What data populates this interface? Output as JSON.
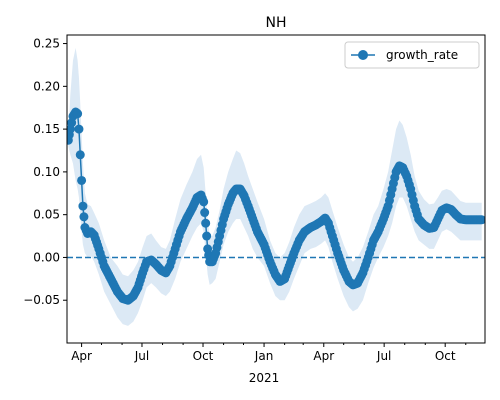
{
  "chart_data": {
    "type": "line",
    "title": "NH",
    "xlabel": "",
    "ylabel": "",
    "x_axis": {
      "type": "date",
      "range": [
        "2020-03-10",
        "2021-11-30"
      ],
      "ticks": [
        {
          "date": "2020-04-01",
          "label": "Apr"
        },
        {
          "date": "2020-07-01",
          "label": "Jul"
        },
        {
          "date": "2020-10-01",
          "label": "Oct"
        },
        {
          "date": "2021-01-01",
          "label": "Jan"
        },
        {
          "date": "2021-04-01",
          "label": "Apr"
        },
        {
          "date": "2021-07-01",
          "label": "Jul"
        },
        {
          "date": "2021-10-01",
          "label": "Oct"
        }
      ],
      "year_label": {
        "date": "2021-01-01",
        "label": "2021"
      }
    },
    "y_axis": {
      "range": [
        -0.1,
        0.26
      ],
      "ticks": [
        -0.05,
        0.0,
        0.05,
        0.1,
        0.15,
        0.2,
        0.25
      ],
      "tick_labels": [
        "−0.05",
        "0.00",
        "0.05",
        "0.10",
        "0.15",
        "0.20",
        "0.25"
      ]
    },
    "grid": false,
    "legend": {
      "position": "top-right",
      "entries": [
        "growth_rate"
      ]
    },
    "reference_line": {
      "y": 0.0,
      "style": "dashed",
      "color": "#1f77b4"
    },
    "series": [
      {
        "name": "growth_rate",
        "color": "#1f77b4",
        "marker": "circle",
        "band_color": "#dce9f5",
        "points": [
          [
            "2020-03-12",
            0.137,
            0.13,
            0.145
          ],
          [
            "2020-03-15",
            0.15,
            0.12,
            0.19
          ],
          [
            "2020-03-19",
            0.165,
            0.11,
            0.23
          ],
          [
            "2020-03-23",
            0.17,
            0.09,
            0.245
          ],
          [
            "2020-03-26",
            0.168,
            0.08,
            0.23
          ],
          [
            "2020-03-28",
            0.15,
            0.07,
            0.21
          ],
          [
            "2020-03-30",
            0.12,
            0.05,
            0.18
          ],
          [
            "2020-04-01",
            0.09,
            0.03,
            0.145
          ],
          [
            "2020-04-03",
            0.06,
            0.015,
            0.11
          ],
          [
            "2020-04-06",
            0.035,
            0.005,
            0.075
          ],
          [
            "2020-04-10",
            0.028,
            0.0,
            0.062
          ],
          [
            "2020-04-15",
            0.03,
            0.002,
            0.06
          ],
          [
            "2020-04-20",
            0.026,
            -0.005,
            0.052
          ],
          [
            "2020-04-27",
            0.01,
            -0.02,
            0.04
          ],
          [
            "2020-05-05",
            -0.01,
            -0.04,
            0.02
          ],
          [
            "2020-05-15",
            -0.025,
            -0.055,
            0.0
          ],
          [
            "2020-05-25",
            -0.04,
            -0.07,
            -0.01
          ],
          [
            "2020-06-02",
            -0.048,
            -0.078,
            -0.02
          ],
          [
            "2020-06-10",
            -0.05,
            -0.08,
            -0.022
          ],
          [
            "2020-06-18",
            -0.045,
            -0.075,
            -0.015
          ],
          [
            "2020-06-25",
            -0.035,
            -0.065,
            -0.005
          ],
          [
            "2020-07-02",
            -0.018,
            -0.05,
            0.012
          ],
          [
            "2020-07-08",
            -0.005,
            -0.035,
            0.025
          ],
          [
            "2020-07-15",
            -0.003,
            -0.03,
            0.028
          ],
          [
            "2020-07-22",
            -0.008,
            -0.035,
            0.02
          ],
          [
            "2020-07-30",
            -0.015,
            -0.042,
            0.012
          ],
          [
            "2020-08-06",
            -0.018,
            -0.045,
            0.01
          ],
          [
            "2020-08-12",
            -0.01,
            -0.04,
            0.02
          ],
          [
            "2020-08-20",
            0.01,
            -0.025,
            0.045
          ],
          [
            "2020-08-28",
            0.03,
            -0.005,
            0.068
          ],
          [
            "2020-09-06",
            0.045,
            0.01,
            0.085
          ],
          [
            "2020-09-15",
            0.058,
            0.025,
            0.1
          ],
          [
            "2020-09-22",
            0.07,
            0.035,
            0.115
          ],
          [
            "2020-09-28",
            0.073,
            0.04,
            0.12
          ],
          [
            "2020-10-02",
            0.065,
            0.03,
            0.105
          ],
          [
            "2020-10-05",
            0.04,
            0.005,
            0.075
          ],
          [
            "2020-10-08",
            0.01,
            -0.02,
            0.045
          ],
          [
            "2020-10-11",
            -0.005,
            -0.032,
            0.025
          ],
          [
            "2020-10-15",
            -0.005,
            -0.03,
            0.025
          ],
          [
            "2020-10-20",
            0.005,
            -0.025,
            0.035
          ],
          [
            "2020-10-26",
            0.025,
            -0.005,
            0.055
          ],
          [
            "2020-11-01",
            0.045,
            0.015,
            0.08
          ],
          [
            "2020-11-08",
            0.062,
            0.03,
            0.1
          ],
          [
            "2020-11-15",
            0.075,
            0.04,
            0.115
          ],
          [
            "2020-11-20",
            0.08,
            0.045,
            0.125
          ],
          [
            "2020-11-26",
            0.08,
            0.045,
            0.122
          ],
          [
            "2020-12-02",
            0.072,
            0.035,
            0.11
          ],
          [
            "2020-12-08",
            0.06,
            0.025,
            0.095
          ],
          [
            "2020-12-15",
            0.045,
            0.01,
            0.08
          ],
          [
            "2020-12-22",
            0.03,
            0.0,
            0.065
          ],
          [
            "2021-01-01",
            0.015,
            -0.01,
            0.045
          ],
          [
            "2021-01-10",
            -0.005,
            -0.03,
            0.02
          ],
          [
            "2021-01-18",
            -0.02,
            -0.045,
            0.005
          ],
          [
            "2021-01-25",
            -0.028,
            -0.05,
            0.0
          ],
          [
            "2021-02-01",
            -0.025,
            -0.05,
            0.005
          ],
          [
            "2021-02-08",
            -0.01,
            -0.04,
            0.018
          ],
          [
            "2021-02-15",
            0.005,
            -0.025,
            0.035
          ],
          [
            "2021-02-23",
            0.02,
            -0.01,
            0.05
          ],
          [
            "2021-03-03",
            0.03,
            0.005,
            0.06
          ],
          [
            "2021-03-12",
            0.035,
            0.01,
            0.063
          ],
          [
            "2021-03-20",
            0.038,
            0.012,
            0.066
          ],
          [
            "2021-03-28",
            0.042,
            0.016,
            0.07
          ],
          [
            "2021-04-03",
            0.046,
            0.02,
            0.075
          ],
          [
            "2021-04-08",
            0.04,
            0.012,
            0.07
          ],
          [
            "2021-04-14",
            0.025,
            -0.005,
            0.055
          ],
          [
            "2021-04-22",
            0.005,
            -0.025,
            0.035
          ],
          [
            "2021-05-01",
            -0.015,
            -0.045,
            0.015
          ],
          [
            "2021-05-09",
            -0.028,
            -0.058,
            0.0
          ],
          [
            "2021-05-15",
            -0.032,
            -0.063,
            -0.005
          ],
          [
            "2021-05-22",
            -0.03,
            -0.06,
            0.0
          ],
          [
            "2021-05-30",
            -0.018,
            -0.05,
            0.012
          ],
          [
            "2021-06-07",
            0.0,
            -0.03,
            0.03
          ],
          [
            "2021-06-15",
            0.02,
            -0.012,
            0.05
          ],
          [
            "2021-06-22",
            0.03,
            0.0,
            0.06
          ],
          [
            "2021-06-30",
            0.045,
            0.012,
            0.08
          ],
          [
            "2021-07-07",
            0.06,
            0.025,
            0.1
          ],
          [
            "2021-07-13",
            0.08,
            0.04,
            0.125
          ],
          [
            "2021-07-19",
            0.1,
            0.06,
            0.15
          ],
          [
            "2021-07-24",
            0.107,
            0.07,
            0.16
          ],
          [
            "2021-07-29",
            0.105,
            0.07,
            0.155
          ],
          [
            "2021-08-04",
            0.095,
            0.06,
            0.14
          ],
          [
            "2021-08-10",
            0.08,
            0.045,
            0.12
          ],
          [
            "2021-08-16",
            0.06,
            0.03,
            0.095
          ],
          [
            "2021-08-22",
            0.045,
            0.02,
            0.078
          ],
          [
            "2021-08-30",
            0.038,
            0.015,
            0.068
          ],
          [
            "2021-09-07",
            0.034,
            0.01,
            0.062
          ],
          [
            "2021-09-14",
            0.035,
            0.01,
            0.063
          ],
          [
            "2021-09-20",
            0.045,
            0.02,
            0.07
          ],
          [
            "2021-09-26",
            0.055,
            0.03,
            0.078
          ],
          [
            "2021-10-03",
            0.058,
            0.033,
            0.08
          ],
          [
            "2021-10-10",
            0.056,
            0.03,
            0.078
          ],
          [
            "2021-10-17",
            0.05,
            0.025,
            0.072
          ],
          [
            "2021-10-24",
            0.045,
            0.02,
            0.066
          ],
          [
            "2021-11-01",
            0.044,
            0.02,
            0.064
          ],
          [
            "2021-11-12",
            0.044,
            0.02,
            0.064
          ],
          [
            "2021-11-25",
            0.044,
            0.02,
            0.064
          ]
        ]
      }
    ]
  }
}
